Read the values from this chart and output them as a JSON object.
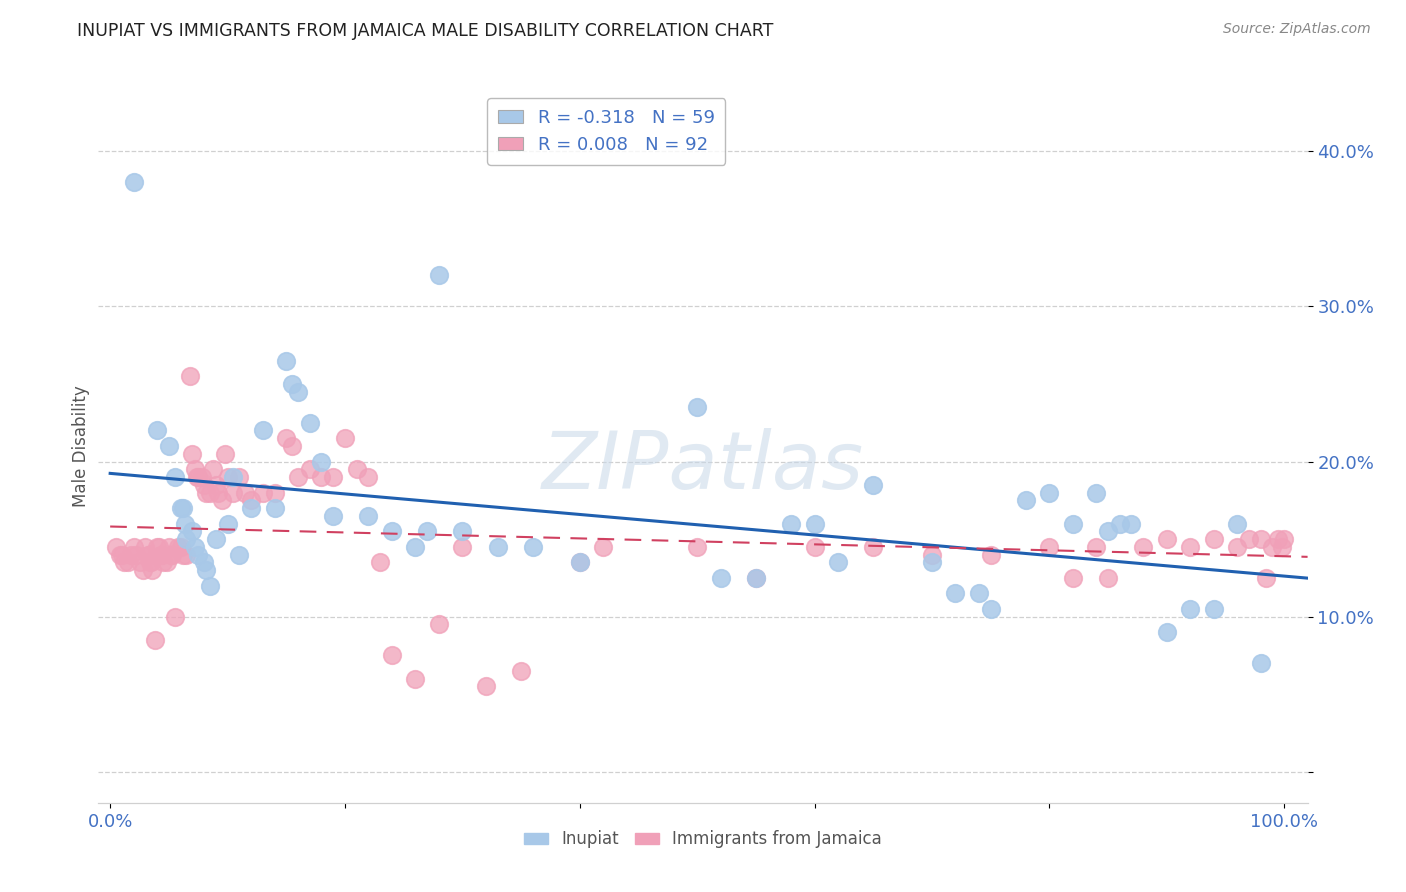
{
  "title": "INUPIAT VS IMMIGRANTS FROM JAMAICA MALE DISABILITY CORRELATION CHART",
  "source": "Source: ZipAtlas.com",
  "ylabel": "Male Disability",
  "xlim": [
    -0.01,
    1.02
  ],
  "ylim": [
    -0.02,
    0.44
  ],
  "yticks": [
    0.0,
    0.1,
    0.2,
    0.3,
    0.4
  ],
  "xticks": [
    0.0,
    0.2,
    0.4,
    0.6,
    0.8,
    1.0
  ],
  "xtick_labels": [
    "0.0%",
    "",
    "",
    "",
    "",
    "100.0%"
  ],
  "ytick_labels": [
    "",
    "10.0%",
    "20.0%",
    "30.0%",
    "40.0%"
  ],
  "inupiat_R": -0.318,
  "inupiat_N": 59,
  "jamaica_R": 0.008,
  "jamaica_N": 92,
  "inupiat_color": "#a8c8e8",
  "jamaica_color": "#f0a0b8",
  "inupiat_line_color": "#2060b0",
  "jamaica_line_color": "#d04060",
  "watermark": "ZIPatlas",
  "inupiat_x": [
    0.02,
    0.04,
    0.05,
    0.055,
    0.06,
    0.062,
    0.064,
    0.065,
    0.07,
    0.072,
    0.075,
    0.08,
    0.082,
    0.085,
    0.09,
    0.1,
    0.105,
    0.11,
    0.12,
    0.13,
    0.14,
    0.15,
    0.155,
    0.16,
    0.17,
    0.18,
    0.19,
    0.22,
    0.24,
    0.26,
    0.27,
    0.28,
    0.3,
    0.33,
    0.36,
    0.4,
    0.5,
    0.52,
    0.55,
    0.58,
    0.6,
    0.62,
    0.65,
    0.7,
    0.72,
    0.74,
    0.75,
    0.78,
    0.8,
    0.82,
    0.84,
    0.85,
    0.86,
    0.87,
    0.9,
    0.92,
    0.94,
    0.96,
    0.98
  ],
  "inupiat_y": [
    0.38,
    0.22,
    0.21,
    0.19,
    0.17,
    0.17,
    0.16,
    0.15,
    0.155,
    0.145,
    0.14,
    0.135,
    0.13,
    0.12,
    0.15,
    0.16,
    0.19,
    0.14,
    0.17,
    0.22,
    0.17,
    0.265,
    0.25,
    0.245,
    0.225,
    0.2,
    0.165,
    0.165,
    0.155,
    0.145,
    0.155,
    0.32,
    0.155,
    0.145,
    0.145,
    0.135,
    0.235,
    0.125,
    0.125,
    0.16,
    0.16,
    0.135,
    0.185,
    0.135,
    0.115,
    0.115,
    0.105,
    0.175,
    0.18,
    0.16,
    0.18,
    0.155,
    0.16,
    0.16,
    0.09,
    0.105,
    0.105,
    0.16,
    0.07
  ],
  "jamaica_x": [
    0.005,
    0.008,
    0.01,
    0.012,
    0.015,
    0.018,
    0.02,
    0.022,
    0.025,
    0.028,
    0.03,
    0.032,
    0.033,
    0.034,
    0.035,
    0.036,
    0.038,
    0.04,
    0.042,
    0.043,
    0.044,
    0.045,
    0.048,
    0.05,
    0.052,
    0.053,
    0.055,
    0.058,
    0.06,
    0.062,
    0.065,
    0.068,
    0.07,
    0.072,
    0.074,
    0.075,
    0.078,
    0.08,
    0.082,
    0.085,
    0.088,
    0.09,
    0.092,
    0.095,
    0.098,
    0.1,
    0.105,
    0.11,
    0.115,
    0.12,
    0.13,
    0.14,
    0.15,
    0.155,
    0.16,
    0.17,
    0.18,
    0.19,
    0.2,
    0.21,
    0.22,
    0.23,
    0.24,
    0.26,
    0.28,
    0.3,
    0.32,
    0.35,
    0.4,
    0.42,
    0.5,
    0.55,
    0.6,
    0.65,
    0.7,
    0.75,
    0.8,
    0.82,
    0.84,
    0.85,
    0.88,
    0.9,
    0.92,
    0.94,
    0.96,
    0.97,
    0.98,
    0.985,
    0.99,
    0.995,
    0.998,
    1.0
  ],
  "jamaica_y": [
    0.145,
    0.14,
    0.14,
    0.135,
    0.135,
    0.14,
    0.145,
    0.14,
    0.135,
    0.13,
    0.145,
    0.14,
    0.14,
    0.135,
    0.135,
    0.13,
    0.085,
    0.145,
    0.145,
    0.14,
    0.14,
    0.135,
    0.135,
    0.145,
    0.14,
    0.14,
    0.1,
    0.145,
    0.145,
    0.14,
    0.14,
    0.255,
    0.205,
    0.195,
    0.19,
    0.19,
    0.19,
    0.185,
    0.18,
    0.18,
    0.195,
    0.185,
    0.18,
    0.175,
    0.205,
    0.19,
    0.18,
    0.19,
    0.18,
    0.175,
    0.18,
    0.18,
    0.215,
    0.21,
    0.19,
    0.195,
    0.19,
    0.19,
    0.215,
    0.195,
    0.19,
    0.135,
    0.075,
    0.06,
    0.095,
    0.145,
    0.055,
    0.065,
    0.135,
    0.145,
    0.145,
    0.125,
    0.145,
    0.145,
    0.14,
    0.14,
    0.145,
    0.125,
    0.145,
    0.125,
    0.145,
    0.15,
    0.145,
    0.15,
    0.145,
    0.15,
    0.15,
    0.125,
    0.145,
    0.15,
    0.145,
    0.15
  ]
}
